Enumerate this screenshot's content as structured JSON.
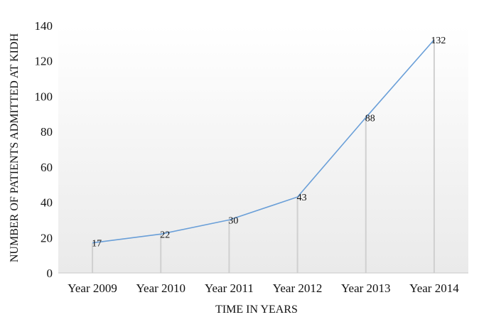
{
  "chart_data": {
    "type": "line",
    "title": "",
    "xlabel": "TIME IN YEARS",
    "ylabel": "NUMBER OF PATIENTS ADMITTED AT KIDH",
    "categories": [
      "Year 2009",
      "Year 2010",
      "Year 2011",
      "Year 2012",
      "Year 2013",
      "Year 2014"
    ],
    "series": [
      {
        "values": [
          17,
          22,
          30,
          43,
          88,
          132
        ]
      }
    ],
    "data_labels": [
      "17",
      "22",
      "30",
      "43",
      "88",
      "132"
    ],
    "y_ticks": [
      "0",
      "20",
      "40",
      "60",
      "80",
      "100",
      "120",
      "140"
    ],
    "ylim": [
      0,
      140
    ],
    "grid": false,
    "drop_lines": true,
    "legend": "none",
    "colors": {
      "line": "#6a9fd8",
      "drop_line": "#d0d0d0",
      "axis": "#c8c8c8",
      "background_top": "#ffffff",
      "background_bottom": "#eaeaea"
    }
  }
}
